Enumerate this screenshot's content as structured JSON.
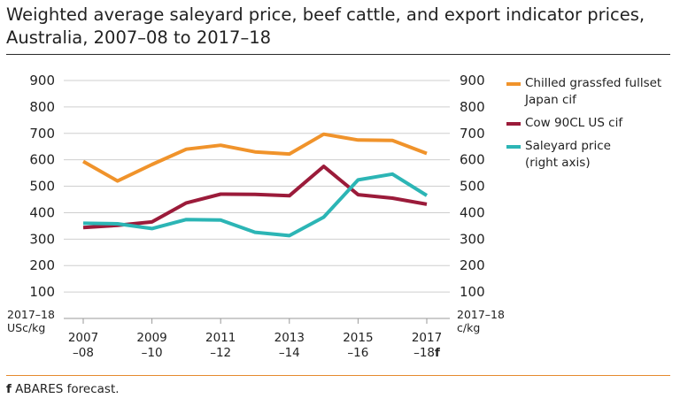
{
  "title": "Weighted average saleyard price, beef cattle, and export indicator prices, Australia, 2007–08 to 2017–18",
  "footnote": {
    "marker": "f",
    "text": " ABARES forecast."
  },
  "chart_data": {
    "type": "line",
    "x_ticks": [
      {
        "line1": "2007",
        "line2": "–08",
        "suffix": ""
      },
      {
        "line1": "2009",
        "line2": "–10",
        "suffix": ""
      },
      {
        "line1": "2011",
        "line2": "–12",
        "suffix": ""
      },
      {
        "line1": "2013",
        "line2": "–14",
        "suffix": ""
      },
      {
        "line1": "2015",
        "line2": "–16",
        "suffix": ""
      },
      {
        "line1": "2017",
        "line2": "–18",
        "suffix": "f"
      }
    ],
    "x": [
      "2007–08",
      "2008–09",
      "2009–10",
      "2010–11",
      "2011–12",
      "2012–13",
      "2013–14",
      "2014–15",
      "2015–16",
      "2016–17",
      "2017–18"
    ],
    "y_left": {
      "ticks": [
        100,
        200,
        300,
        400,
        500,
        600,
        700,
        800,
        900
      ],
      "unit_line1": "2017–18",
      "unit_line2": "USc/kg",
      "ylim": [
        0,
        900
      ]
    },
    "y_right": {
      "ticks": [
        100,
        200,
        300,
        400,
        500,
        600,
        700,
        800,
        900
      ],
      "unit_line1": "2017–18",
      "unit_line2": "c/kg",
      "ylim": [
        0,
        900
      ]
    },
    "grid": true,
    "legend_position": "right",
    "series": [
      {
        "name_lines": [
          "Chilled grassfed fullset",
          "Japan cif"
        ],
        "color": "#f0932b",
        "axis": "left",
        "values": [
          594,
          520,
          582,
          640,
          655,
          630,
          622,
          697,
          675,
          673,
          624
        ]
      },
      {
        "name_lines": [
          "Cow 90CL US cif"
        ],
        "color": "#9b1b3a",
        "axis": "left",
        "values": [
          344,
          352,
          365,
          437,
          470,
          469,
          464,
          575,
          468,
          455,
          432
        ]
      },
      {
        "name_lines": [
          "Saleyard price",
          "(right axis)"
        ],
        "color": "#2cb5b5",
        "axis": "right",
        "values": [
          360,
          358,
          340,
          374,
          372,
          326,
          313,
          383,
          524,
          546,
          465
        ]
      }
    ]
  }
}
